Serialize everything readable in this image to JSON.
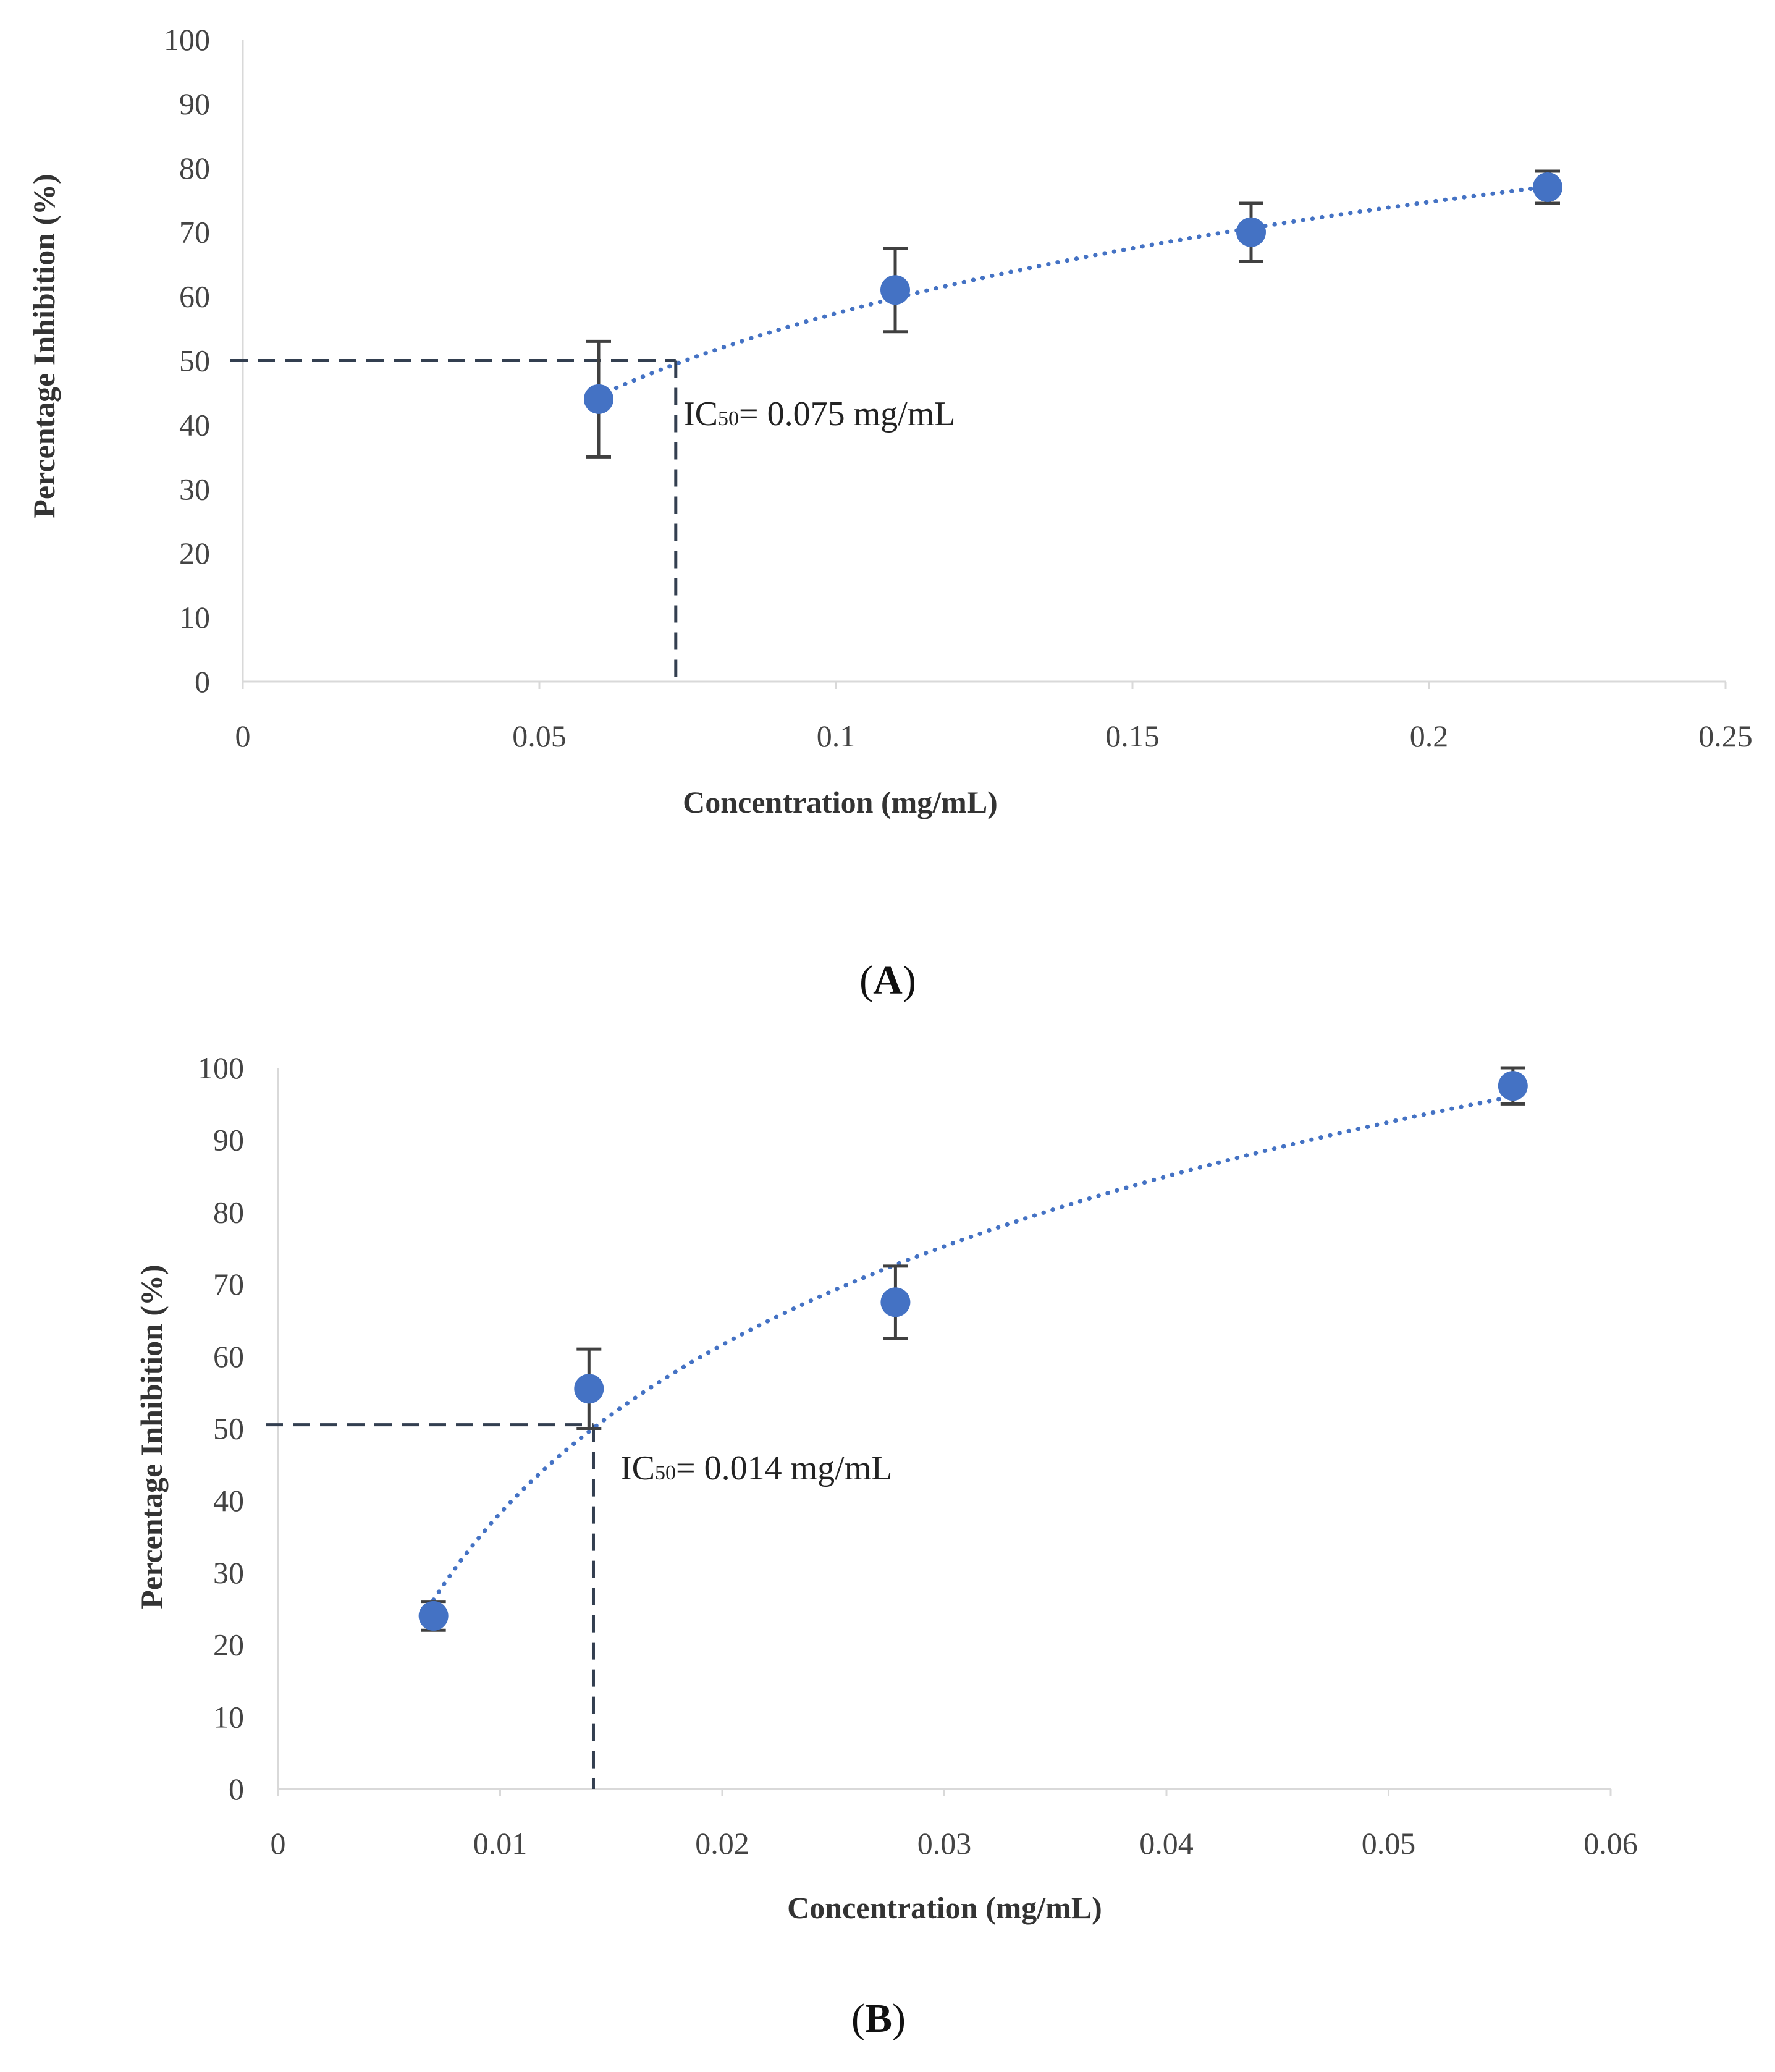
{
  "chart_data": [
    {
      "panel_label": "A",
      "type": "scatter",
      "title": "",
      "xlabel": "Concentration (mg/mL)",
      "ylabel": "Percentage Inhibition (%)",
      "xlim": [
        0,
        0.25
      ],
      "ylim": [
        0,
        100
      ],
      "x_ticks": [
        "0",
        "0.05",
        "0.1",
        "0.15",
        "0.2",
        "0.25"
      ],
      "y_ticks": [
        "0",
        "10",
        "20",
        "30",
        "40",
        "50",
        "60",
        "70",
        "80",
        "90",
        "100"
      ],
      "grid": false,
      "legend": "none",
      "color": "#4472C4",
      "trendline": "logarithmic, dotted",
      "points": [
        {
          "x": 0.06,
          "y": 44,
          "err": 9
        },
        {
          "x": 0.11,
          "y": 61,
          "err": 6.5
        },
        {
          "x": 0.17,
          "y": 70,
          "err": 4.5
        },
        {
          "x": 0.22,
          "y": 77,
          "err": 2.5
        }
      ],
      "ic50": {
        "prefix": "IC",
        "sub": "50",
        "text": "= 0.075 mg/mL",
        "x": 0.073,
        "y": 50
      }
    },
    {
      "panel_label": "B",
      "type": "scatter",
      "title": "",
      "xlabel": "Concentration (mg/mL)",
      "ylabel": "Percentage Inhibition (%)",
      "xlim": [
        0,
        0.06
      ],
      "ylim": [
        0,
        100
      ],
      "x_ticks": [
        "0",
        "0.01",
        "0.02",
        "0.03",
        "0.04",
        "0.05",
        "0.06"
      ],
      "y_ticks": [
        "0",
        "10",
        "20",
        "30",
        "40",
        "50",
        "60",
        "70",
        "80",
        "90",
        "100"
      ],
      "grid": false,
      "legend": "none",
      "color": "#4472C4",
      "trendline": "logarithmic, dotted",
      "points": [
        {
          "x": 0.007,
          "y": 24,
          "err": 2
        },
        {
          "x": 0.014,
          "y": 55.5,
          "err": 5.5
        },
        {
          "x": 0.0278,
          "y": 67.5,
          "err": 5
        },
        {
          "x": 0.0556,
          "y": 97.5,
          "err": 2.5
        }
      ],
      "ic50": {
        "prefix": "IC",
        "sub": "50",
        "text": "= 0.014 mg/mL",
        "x": 0.0142,
        "y": 50.5
      }
    }
  ]
}
